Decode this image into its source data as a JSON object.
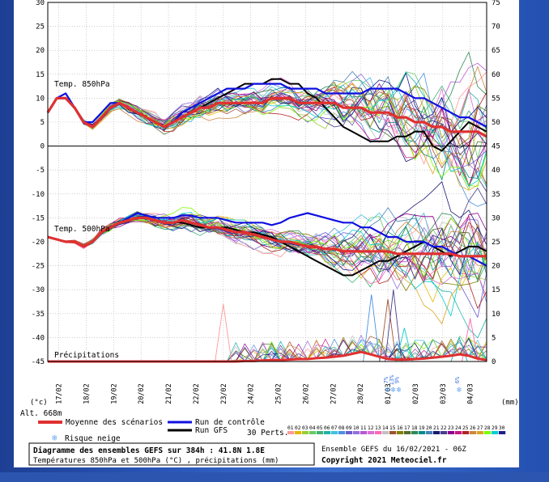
{
  "chart_data": {
    "type": "line",
    "title": "Diagramme des ensembles GEFS sur 384h : 41.8N 1.8E",
    "subtitle": "Températures 850hPa et 500hPa (°C) , précipitations (mm)",
    "source": "Ensemble GEFS du 16/02/2021 - 06Z",
    "copyright": "Copyright 2021 Meteociel.fr",
    "altitude": "Alt. 668m",
    "left_unit": "(°c)",
    "right_unit": "(mm)",
    "left_ticks": [
      "30",
      "25",
      "20",
      "15",
      "10",
      "5",
      "0",
      "-5",
      "-10",
      "-15",
      "-20",
      "-25",
      "-30",
      "-35",
      "-40",
      "-45"
    ],
    "right_ticks": [
      "75",
      "70",
      "65",
      "60",
      "55",
      "50",
      "45",
      "40",
      "35",
      "30",
      "25",
      "20",
      "15",
      "10",
      "5",
      "0"
    ],
    "x_ticks": [
      "17/02",
      "18/02",
      "19/02",
      "20/02",
      "21/02",
      "22/02",
      "23/02",
      "24/02",
      "25/02",
      "26/02",
      "27/02",
      "28/02",
      "01/03",
      "02/03",
      "03/03",
      "04/03"
    ],
    "panel_labels": {
      "t850": "Temp. 850hPa",
      "t500": "Temp. 500hPa",
      "precip": "Précipitations"
    },
    "legend": {
      "mean": "Moyenne des scénarios",
      "control": "Run de contrôle",
      "gfs": "Run GFS",
      "snow": "Risque neige",
      "perts": "30 Perts."
    },
    "member_numbers": [
      "01",
      "02",
      "03",
      "04",
      "05",
      "06",
      "07",
      "08",
      "09",
      "10",
      "11",
      "12",
      "13",
      "14",
      "15",
      "16",
      "17",
      "18",
      "19",
      "20",
      "21",
      "22",
      "23",
      "24",
      "25",
      "26",
      "27",
      "28",
      "29",
      "30"
    ],
    "member_colors": [
      "#ff9999",
      "#e6b800",
      "#9acd32",
      "#66cc66",
      "#3cb371",
      "#20b2aa",
      "#40c0e0",
      "#4a90e2",
      "#6a5acd",
      "#9370db",
      "#ba55d3",
      "#da70d6",
      "#ff69b4",
      "#c0c0c0",
      "#a0522d",
      "#808000",
      "#556b2f",
      "#2e8b57",
      "#008b8b",
      "#4682b4",
      "#191970",
      "#483d8b",
      "#8b008b",
      "#c71585",
      "#b22222",
      "#cd853f",
      "#daa520",
      "#7cfc00",
      "#00ced1",
      "#1e1e8c"
    ],
    "snow_markers": [
      {
        "label": "7%",
        "step": 124
      },
      {
        "label": "13%",
        "step": 126
      },
      {
        "label": "9%",
        "step": 128
      },
      {
        "label": "6%",
        "step": 150
      }
    ],
    "series": [
      {
        "name": "Moyenne des scénarios",
        "t850": [
          7,
          10,
          10,
          8,
          5,
          4,
          6,
          8,
          9,
          8,
          7,
          6,
          5,
          4,
          5,
          6,
          7,
          8,
          8,
          9,
          9,
          9,
          9,
          9,
          9,
          10,
          10,
          10,
          9,
          9,
          9,
          9,
          9,
          8,
          8,
          8,
          7,
          7,
          7,
          6,
          6,
          5,
          5,
          4,
          4,
          3,
          3,
          3,
          3,
          2
        ],
        "t500": [
          -19,
          -19.5,
          -20,
          -20,
          -21,
          -20,
          -18,
          -17,
          -16,
          -15.5,
          -15,
          -15,
          -15.5,
          -16,
          -16,
          -15.5,
          -16,
          -16.5,
          -17,
          -17,
          -17.5,
          -18,
          -18,
          -18.5,
          -19,
          -19.5,
          -20,
          -20,
          -20.5,
          -21,
          -21,
          -21.5,
          -21.5,
          -22,
          -22,
          -22,
          -22,
          -22,
          -22,
          -22.5,
          -22.5,
          -22.5,
          -22.5,
          -22.5,
          -22.5,
          -22.5,
          -23,
          -23,
          -23,
          -23
        ]
      },
      {
        "name": "Run de contrôle",
        "t850": [
          7,
          10,
          11,
          8,
          5,
          5,
          7,
          9,
          9,
          8,
          7,
          6,
          5,
          4,
          5,
          7,
          8,
          9,
          10,
          11,
          12,
          12,
          12,
          13,
          13,
          13,
          13,
          12,
          12,
          12,
          12,
          11,
          11,
          11,
          11,
          11,
          12,
          12,
          12,
          12,
          11,
          10,
          10,
          9,
          8,
          7,
          6,
          6,
          5,
          4
        ],
        "t500": [
          -19,
          -19.5,
          -20,
          -20,
          -21,
          -20,
          -18,
          -17,
          -16,
          -15,
          -14,
          -14.5,
          -15,
          -15,
          -15,
          -14.5,
          -14.5,
          -15,
          -15,
          -15,
          -15.5,
          -16,
          -16,
          -16,
          -16,
          -16.5,
          -16,
          -15,
          -14.5,
          -14,
          -14.5,
          -15,
          -15.5,
          -16,
          -16,
          -17,
          -17,
          -18,
          -19,
          -19,
          -20,
          -20,
          -20,
          -21,
          -21,
          -22,
          -23,
          -23,
          -24,
          -25
        ]
      },
      {
        "name": "Run GFS",
        "t850": [
          7,
          10,
          10,
          8,
          5,
          4,
          6,
          8,
          9,
          8,
          7,
          6,
          5,
          4,
          5,
          6,
          7,
          8,
          9,
          10,
          11,
          12,
          13,
          13,
          13,
          14,
          14,
          13,
          13,
          11,
          10,
          8,
          6,
          4,
          3,
          2,
          1,
          1,
          1,
          2,
          2,
          3,
          3,
          0,
          -1,
          1,
          3,
          5,
          4,
          3
        ],
        "t500": [
          -19,
          -19.5,
          -20,
          -20,
          -21,
          -20,
          -18,
          -17,
          -16,
          -15.5,
          -15,
          -15,
          -15.5,
          -16,
          -16,
          -16,
          -16.5,
          -17,
          -17,
          -17,
          -17,
          -17.5,
          -18,
          -18,
          -18.5,
          -19,
          -20,
          -21,
          -22,
          -23,
          -24,
          -25,
          -26,
          -27,
          -27,
          -26,
          -25,
          -24,
          -24,
          -23,
          -22,
          -21,
          -20,
          -21,
          -22,
          -23,
          -22,
          -21,
          -21,
          -22
        ]
      }
    ],
    "precip": {
      "mean": [
        0,
        0,
        0,
        0,
        0,
        0,
        0,
        0,
        0,
        0,
        0,
        0,
        0,
        0,
        0,
        0,
        0,
        0,
        0,
        0,
        0,
        0,
        0.1,
        0.1,
        0.2,
        0.3,
        0.3,
        0.4,
        0.5,
        0.5,
        0.7,
        0.8,
        1,
        1.2,
        1.6,
        2,
        1.5,
        1,
        0.5,
        0.4,
        0.4,
        0.5,
        0.6,
        0.8,
        1,
        1.2,
        1.5,
        1.2,
        0.6,
        0.3
      ],
      "peaks": [
        {
          "step": 64,
          "value": 12
        },
        {
          "step": 118,
          "value": 14
        },
        {
          "step": 124,
          "value": 13
        },
        {
          "step": 126,
          "value": 15
        },
        {
          "step": 130,
          "value": 7
        },
        {
          "step": 150,
          "value": 5
        },
        {
          "step": 154,
          "value": 9
        }
      ]
    }
  }
}
